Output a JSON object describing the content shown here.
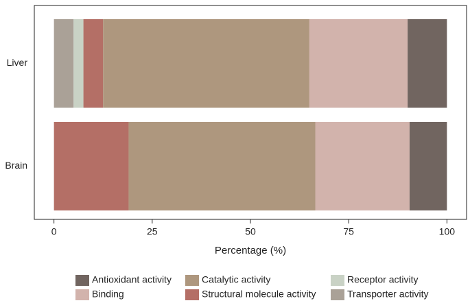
{
  "chart_data": {
    "type": "stacked-barh",
    "categories": [
      "Liver",
      "Brain"
    ],
    "series": [
      {
        "name": "Antioxidant activity",
        "color": "#716560",
        "values": [
          10,
          9.5
        ]
      },
      {
        "name": "Binding",
        "color": "#d2b3ac",
        "values": [
          25,
          24
        ]
      },
      {
        "name": "Catalytic activity",
        "color": "#ae977e",
        "values": [
          52.5,
          47.5
        ]
      },
      {
        "name": "Structural molecule activity",
        "color": "#b46f66",
        "values": [
          5,
          19
        ]
      },
      {
        "name": "Receptor activity",
        "color": "#c9d2c5",
        "values": [
          2.5,
          0
        ]
      },
      {
        "name": "Transporter activity",
        "color": "#aaa197",
        "values": [
          5,
          0
        ]
      }
    ],
    "xlabel": "Percentage (%)",
    "xlim": [
      -5,
      105
    ],
    "xticks": [
      0,
      25,
      50,
      75,
      100
    ]
  }
}
